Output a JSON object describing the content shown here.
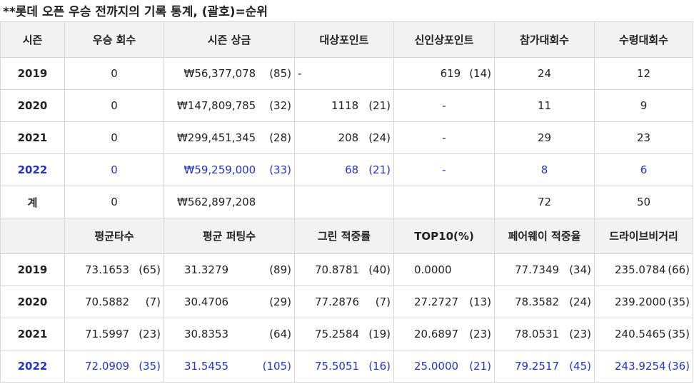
{
  "title": "**롯데 오픈 우승 전까지의 기록 통계, (괄호)=순위",
  "headers1": [
    "시즌",
    "우승 회수",
    "시즌 상금",
    "대상포인트",
    "신인상포인트",
    "참가대회수",
    "수령대회수"
  ],
  "rows1": [
    {
      "season": "2019",
      "wins": "0",
      "prize": "₩56,377,078",
      "prize_rank": "(85)",
      "points": "-",
      "points_rank": "",
      "rookie": "619",
      "rookie_rank": "(14)",
      "events": "24",
      "cuts": "12"
    },
    {
      "season": "2020",
      "wins": "0",
      "prize": "₩147,809,785",
      "prize_rank": "(32)",
      "points": "1118",
      "points_rank": "(21)",
      "rookie": "-",
      "rookie_rank": "",
      "events": "11",
      "cuts": "9"
    },
    {
      "season": "2021",
      "wins": "0",
      "prize": "₩299,451,345",
      "prize_rank": "(28)",
      "points": "208",
      "points_rank": "(24)",
      "rookie": "-",
      "rookie_rank": "",
      "events": "29",
      "cuts": "23"
    },
    {
      "season": "2022",
      "wins": "0",
      "prize": "₩59,259,000",
      "prize_rank": "(33)",
      "points": "68",
      "points_rank": "(21)",
      "rookie": "-",
      "rookie_rank": "",
      "events": "8",
      "cuts": "6"
    }
  ],
  "total": {
    "season": "계",
    "wins": "0",
    "prize": "₩562,897,208",
    "events": "72",
    "cuts": "50"
  },
  "headers2": [
    "",
    "평균타수",
    "평균 퍼팅수",
    "그린 적중률",
    "TOP10(%)",
    "페어웨이 적중율",
    "드라이브비거리"
  ],
  "rows2": [
    {
      "season": "2019",
      "cells": [
        [
          "73.1653",
          "(65)"
        ],
        [
          "31.3279",
          "(89)"
        ],
        [
          "70.8781",
          "(40)"
        ],
        [
          "0.0000",
          ""
        ],
        [
          "77.7349",
          "(34)"
        ],
        [
          "235.0784",
          "(66)"
        ]
      ]
    },
    {
      "season": "2020",
      "cells": [
        [
          "70.5882",
          "(7)"
        ],
        [
          "30.4706",
          "(29)"
        ],
        [
          "77.2876",
          "(7)"
        ],
        [
          "27.2727",
          "(13)"
        ],
        [
          "78.3582",
          "(24)"
        ],
        [
          "239.2000",
          "(35)"
        ]
      ]
    },
    {
      "season": "2021",
      "cells": [
        [
          "71.5997",
          "(23)"
        ],
        [
          "30.8353",
          "(64)"
        ],
        [
          "75.2584",
          "(19)"
        ],
        [
          "20.6897",
          "(23)"
        ],
        [
          "78.0531",
          "(23)"
        ],
        [
          "240.5465",
          "(35)"
        ]
      ]
    },
    {
      "season": "2022",
      "cells": [
        [
          "72.0909",
          "(35)"
        ],
        [
          "31.5455",
          "(105)"
        ],
        [
          "75.5051",
          "(16)"
        ],
        [
          "25.0000",
          "(21)"
        ],
        [
          "79.2517",
          "(45)"
        ],
        [
          "243.9254",
          "(36)"
        ]
      ]
    }
  ],
  "highlight_color": "#2233cc"
}
